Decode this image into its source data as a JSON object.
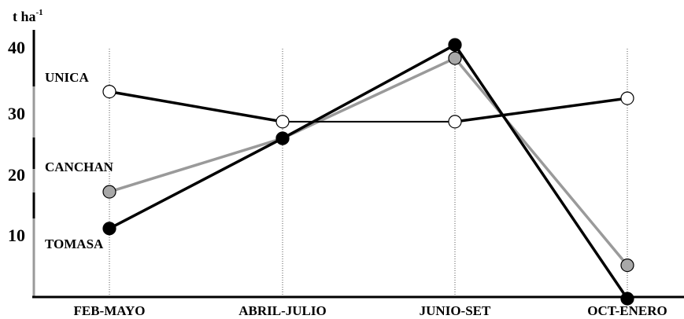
{
  "chart_data": {
    "type": "line",
    "ylabel": "t ha",
    "ylabel_sup": "-1",
    "categories": [
      "FEB-MAYO",
      "ABRIL-JULIO",
      "JUNIO-SET",
      "OCT-ENERO"
    ],
    "yticks": [
      "10",
      "20",
      "30",
      "40"
    ],
    "ylim": [
      0,
      42
    ],
    "grid": "vertical dotted lines at categories",
    "series": [
      {
        "name": "UNICA",
        "values": [
          33,
          28.5,
          28.5,
          32
        ],
        "line_color": "#000000",
        "marker_fill": "#ffffff",
        "line_weight": "thick-thin"
      },
      {
        "name": "CANCHAN",
        "values": [
          18,
          26,
          38,
          7
        ],
        "line_color": "#9a9a9a",
        "marker_fill": "#a8a8a8"
      },
      {
        "name": "TOMASA",
        "values": [
          12.5,
          26,
          40,
          2
        ],
        "line_color": "#000000",
        "marker_fill": "#000000"
      }
    ]
  }
}
